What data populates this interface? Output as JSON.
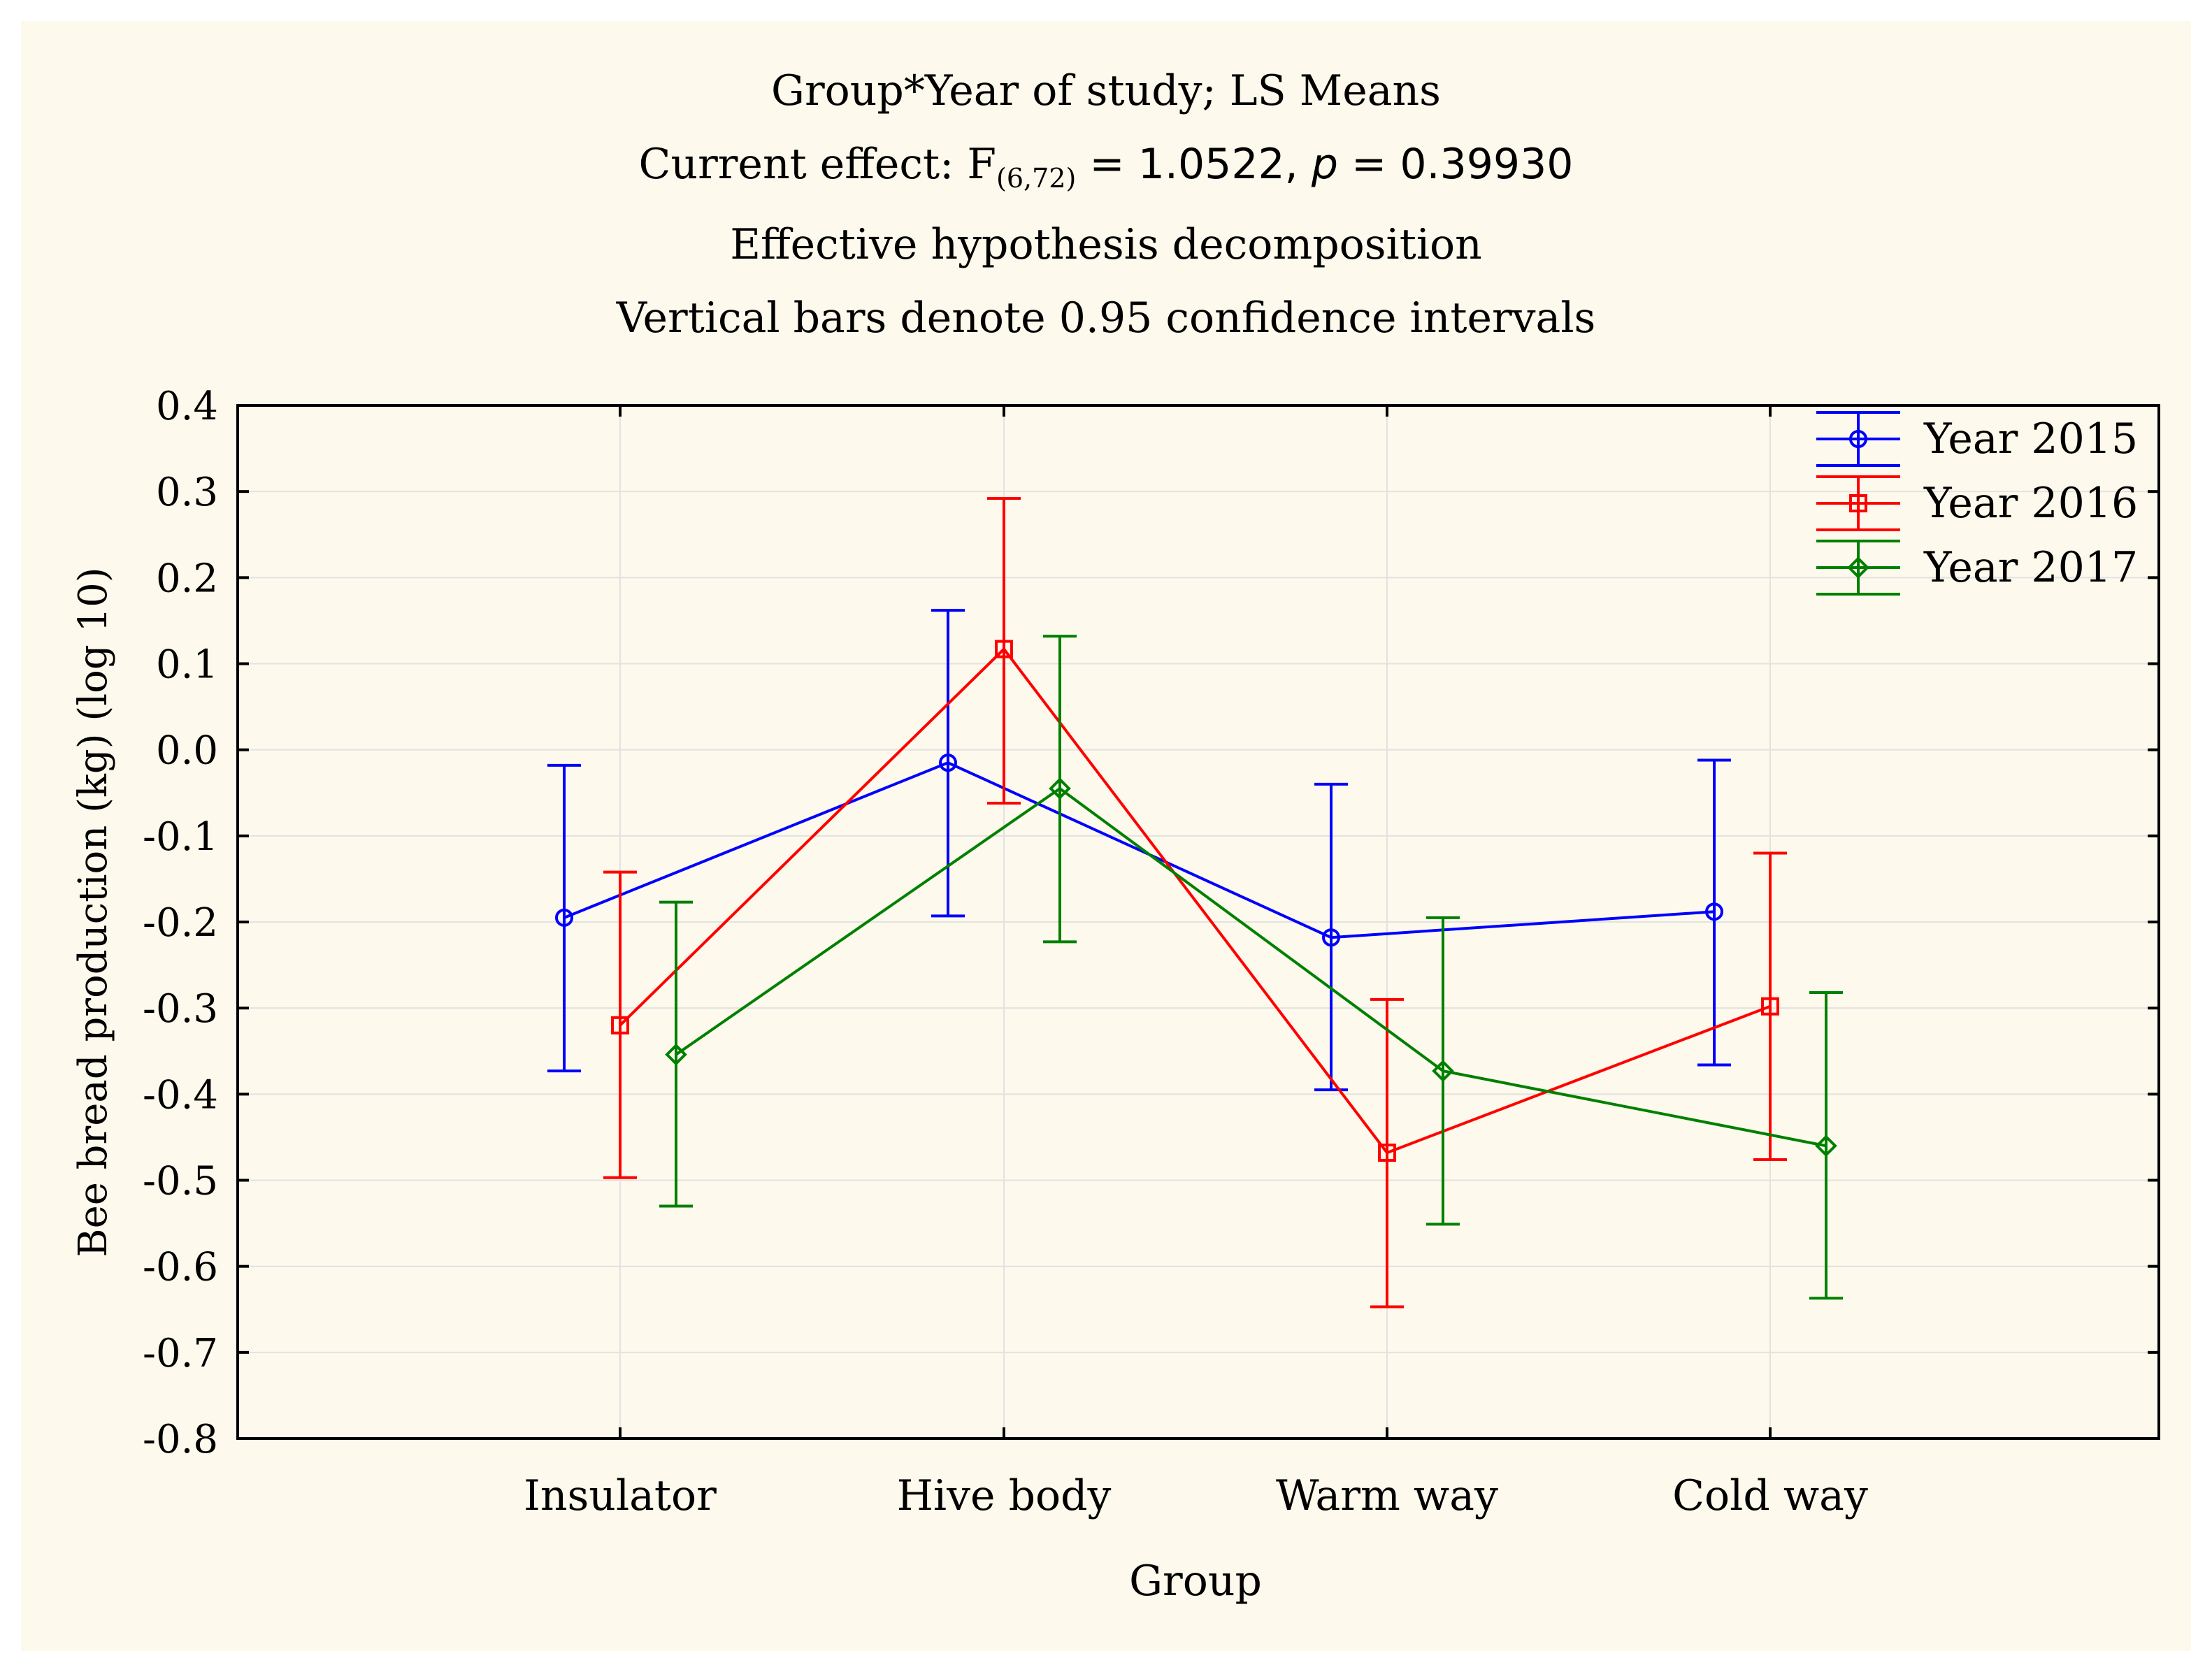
{
  "chart_data": {
    "type": "line",
    "title_lines": {
      "line1": "Group*Year of study; LS Means",
      "line2_prefix": "Current effect: F",
      "line2_subscript": "(6,72)",
      "line2_eq": " = 1.0522, ",
      "line2_p": "p",
      "line2_pval": " = 0.39930",
      "line3": "Effective hypothesis decomposition",
      "line4": "Vertical bars denote 0.95 confidence intervals"
    },
    "xlabel": "Group",
    "ylabel": "Bee bread production (kg) (log 10)",
    "categories": [
      "Insulator",
      "Hive body",
      "Warm way",
      "Cold way"
    ],
    "ylim": [
      -0.8,
      0.4
    ],
    "yticks": [
      0.4,
      0.3,
      0.2,
      0.1,
      0.0,
      -0.1,
      -0.2,
      -0.3,
      -0.4,
      -0.5,
      -0.6,
      -0.7,
      -0.8
    ],
    "ytick_labels": [
      "0.4",
      "0.3",
      "0.2",
      "0.1",
      "0.0",
      "-0.1",
      "-0.2",
      "-0.3",
      "-0.4",
      "-0.5",
      "-0.6",
      "-0.7",
      "-0.8"
    ],
    "grid": true,
    "legend_position": "top-right",
    "series": [
      {
        "name": "Year 2015",
        "color": "#0000ff",
        "marker": "circle",
        "values": [
          -0.195,
          -0.015,
          -0.218,
          -0.188
        ],
        "ci_low": [
          -0.373,
          -0.193,
          -0.395,
          -0.366
        ],
        "ci_high": [
          -0.018,
          0.162,
          -0.04,
          -0.012
        ]
      },
      {
        "name": "Year 2016",
        "color": "#ff0000",
        "marker": "square",
        "values": [
          -0.32,
          0.117,
          -0.468,
          -0.298
        ],
        "ci_low": [
          -0.497,
          -0.062,
          -0.647,
          -0.476
        ],
        "ci_high": [
          -0.142,
          0.292,
          -0.29,
          -0.12
        ]
      },
      {
        "name": "Year 2017",
        "color": "#008000",
        "marker": "diamond",
        "values": [
          -0.354,
          -0.045,
          -0.373,
          -0.46
        ],
        "ci_low": [
          -0.53,
          -0.223,
          -0.551,
          -0.637
        ],
        "ci_high": [
          -0.177,
          0.132,
          -0.195,
          -0.282
        ]
      }
    ]
  }
}
